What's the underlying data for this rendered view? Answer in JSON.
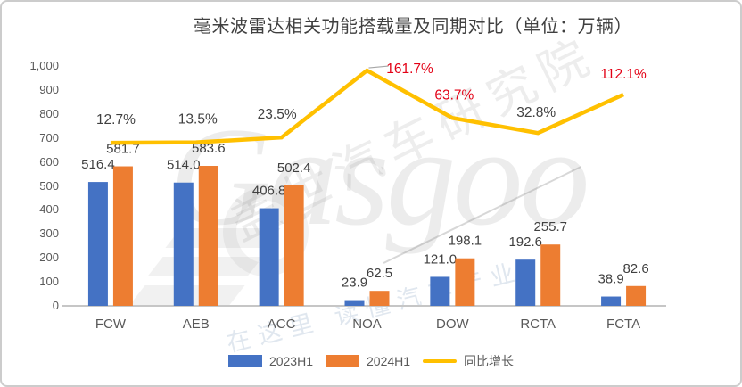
{
  "title": "毫米波雷达相关功能搭载量及同期对比（单位：万辆）",
  "colors": {
    "bar_2023": "#4472C4",
    "bar_2024": "#ED7D31",
    "growth_line": "#FFC000",
    "label_dark": "#404040",
    "label_red": "#E30015",
    "axis_text": "#595959",
    "axis_line": "#C6C6C6",
    "leader_line": "#A6A6A6"
  },
  "chart_data": {
    "type": "bar",
    "subtype": "combo-bar-line",
    "title": "毫米波雷达相关功能搭载量及同期对比（单位：万辆）",
    "categories": [
      "FCW",
      "AEB",
      "ACC",
      "NOA",
      "DOW",
      "RCTA",
      "FCTA"
    ],
    "series": [
      {
        "name": "2023H1",
        "type": "bar",
        "color": "#4472C4",
        "values": [
          516.4,
          514.0,
          406.8,
          23.9,
          121.0,
          192.6,
          38.9
        ]
      },
      {
        "name": "2024H1",
        "type": "bar",
        "color": "#ED7D31",
        "values": [
          581.7,
          583.6,
          502.4,
          62.5,
          198.1,
          255.7,
          82.6
        ]
      },
      {
        "name": "同比增长",
        "type": "line",
        "color": "#FFC000",
        "unit": "%",
        "values": [
          12.7,
          13.5,
          23.5,
          161.7,
          63.7,
          32.8,
          112.1
        ],
        "label_color_flags": [
          "dark",
          "dark",
          "dark",
          "red",
          "red",
          "dark",
          "red"
        ]
      }
    ],
    "y_axis": {
      "min": 0,
      "max": 1000,
      "step": 100,
      "tick_labels": [
        "0",
        "100",
        "200",
        "300",
        "400",
        "500",
        "600",
        "700",
        "800",
        "900",
        "1,000"
      ]
    },
    "grid": "off",
    "legend_position": "bottom",
    "legend": [
      "2023H1",
      "2024H1",
      "同比增长"
    ]
  },
  "watermark": {
    "brand": "Gasgoo",
    "institute": "盖世汽车研究院",
    "slogan": "在这里 读懂汽车产业"
  }
}
